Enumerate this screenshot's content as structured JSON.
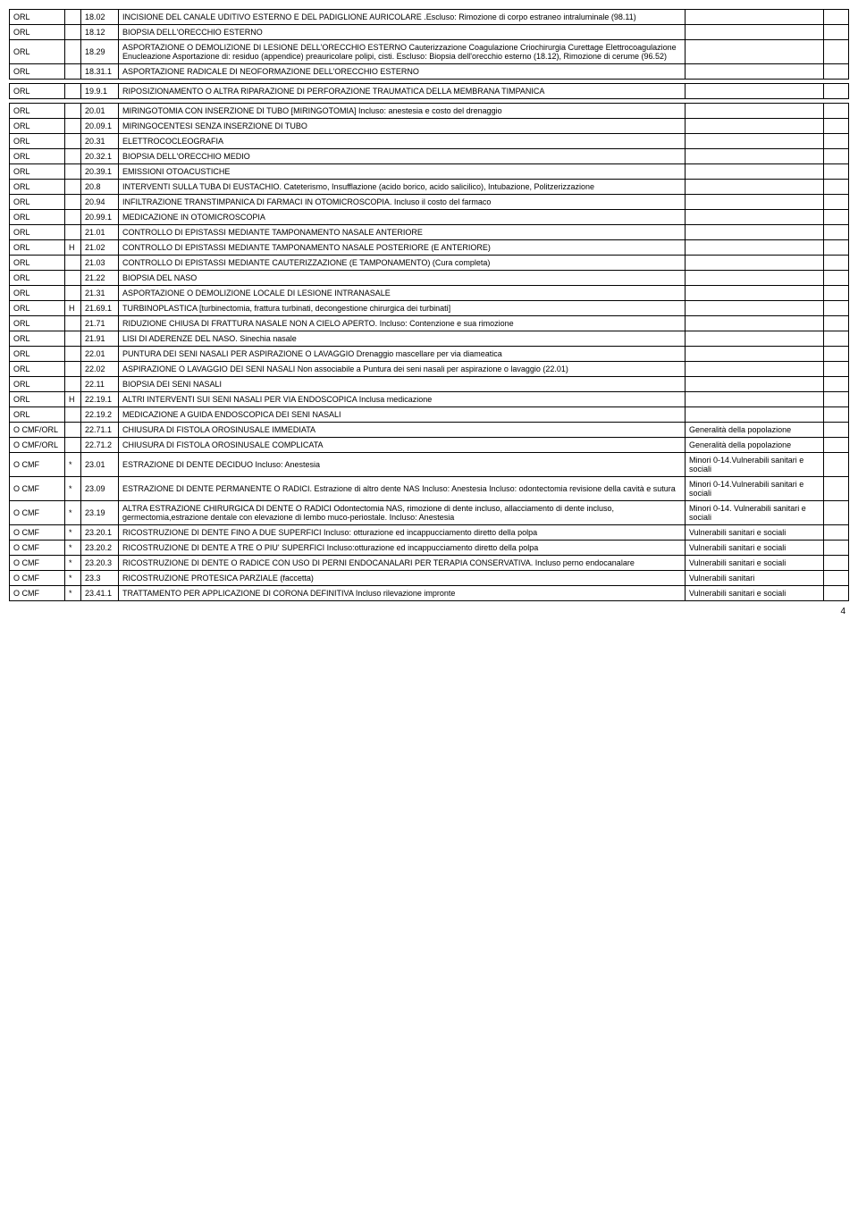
{
  "page_number": "4",
  "rows": [
    {
      "c1": "ORL",
      "c2": "",
      "c3": "18.02",
      "c4": "INCISIONE DEL CANALE UDITIVO ESTERNO E DEL PADIGLIONE AURICOLARE .Escluso: Rimozione di corpo estraneo intraluminale (98.11)",
      "c5": "",
      "c6": ""
    },
    {
      "c1": "ORL",
      "c2": "",
      "c3": "18.12",
      "c4": "BIOPSIA DELL'ORECCHIO ESTERNO",
      "c5": "",
      "c6": ""
    },
    {
      "c1": "ORL",
      "c2": "",
      "c3": "18.29",
      "c4": "ASPORTAZIONE O DEMOLIZIONE DI LESIONE DELL'ORECCHIO ESTERNO Cauterizzazione Coagulazione Criochirurgia Curettage Elettrocoagulazione Enucleazione Asportazione di: residuo (appendice) preauricolare polipi, cisti. Escluso: Biopsia dell'orecchio esterno (18.12), Rimozione di cerume (96.52)",
      "c5": "",
      "c6": ""
    },
    {
      "c1": "ORL",
      "c2": "",
      "c3": "18.31.1",
      "c4": "ASPORTAZIONE RADICALE DI NEOFORMAZIONE  DELL'ORECCHIO ESTERNO",
      "c5": "",
      "c6": ""
    },
    {
      "spacer": true
    },
    {
      "c1": "ORL",
      "c2": "",
      "c3": "19.9.1",
      "c4": "RIPOSIZIONAMENTO O ALTRA RIPARAZIONE DI PERFORAZIONE TRAUMATICA DELLA MEMBRANA TIMPANICA",
      "c5": "",
      "c6": ""
    },
    {
      "spacer": true
    },
    {
      "c1": "ORL",
      "c2": "",
      "c3": "20.01",
      "c4": "MIRINGOTOMIA CON INSERZIONE DI TUBO [MIRINGOTOMIA]  Incluso: anestesia e costo del drenaggio",
      "c5": "",
      "c6": ""
    },
    {
      "c1": "ORL",
      "c2": "",
      "c3": "20.09.1",
      "c4": "MIRINGOCENTESI SENZA INSERZIONE DI TUBO",
      "c5": "",
      "c6": ""
    },
    {
      "c1": "ORL",
      "c2": "",
      "c3": "20.31",
      "c4": "ELETTROCOCLEOGRAFIA",
      "c5": "",
      "c6": ""
    },
    {
      "c1": "ORL",
      "c2": "",
      "c3": "20.32.1",
      "c4": "BIOPSIA DELL'ORECCHIO MEDIO",
      "c5": "",
      "c6": ""
    },
    {
      "c1": "ORL",
      "c2": "",
      "c3": "20.39.1",
      "c4": "EMISSIONI OTOACUSTICHE",
      "c5": "",
      "c6": ""
    },
    {
      "c1": "ORL",
      "c2": "",
      "c3": "20.8",
      "c4": "INTERVENTI SULLA TUBA DI EUSTACHIO. Cateterismo, Insufflazione (acido borico, acido salicilico), Intubazione, Politzerizzazione",
      "c5": "",
      "c6": ""
    },
    {
      "c1": "ORL",
      "c2": "",
      "c3": "20.94",
      "c4": "INFILTRAZIONE TRANSTIMPANICA DI FARMACI IN OTOMICROSCOPIA. Incluso il costo del farmaco",
      "c5": "",
      "c6": ""
    },
    {
      "c1": "ORL",
      "c2": "",
      "c3": "20.99.1",
      "c4": "MEDICAZIONE IN OTOMICROSCOPIA",
      "c5": "",
      "c6": ""
    },
    {
      "c1": "ORL",
      "c2": "",
      "c3": "21.01",
      "c4": "CONTROLLO DI EPISTASSI MEDIANTE TAMPONAMENTO NASALE ANTERIORE",
      "c5": "",
      "c6": ""
    },
    {
      "c1": "ORL",
      "c2": "H",
      "c3": "21.02",
      "c4": "CONTROLLO DI EPISTASSI MEDIANTE TAMPONAMENTO NASALE POSTERIORE (E ANTERIORE)",
      "c5": "",
      "c6": ""
    },
    {
      "c1": "ORL",
      "c2": "",
      "c3": "21.03",
      "c4": "CONTROLLO DI EPISTASSI MEDIANTE CAUTERIZZAZIONE (E TAMPONAMENTO) (Cura completa)",
      "c5": "",
      "c6": ""
    },
    {
      "c1": "ORL",
      "c2": "",
      "c3": "21.22",
      "c4": "BIOPSIA DEL NASO",
      "c5": "",
      "c6": ""
    },
    {
      "c1": "ORL",
      "c2": "",
      "c3": "21.31",
      "c4": "ASPORTAZIONE O DEMOLIZIONE LOCALE DI LESIONE INTRANASALE",
      "c5": "",
      "c6": ""
    },
    {
      "c1": "ORL",
      "c2": "H",
      "c3": "21.69.1",
      "c4": "TURBINOPLASTICA [turbinectomia, frattura turbinati, decongestione chirurgica dei turbinati]",
      "c5": "",
      "c6": ""
    },
    {
      "c1": "ORL",
      "c2": "",
      "c3": "21.71",
      "c4": "RIDUZIONE CHIUSA DI FRATTURA NASALE NON A CIELO APERTO. Incluso: Contenzione e sua rimozione",
      "c5": "",
      "c6": ""
    },
    {
      "c1": "ORL",
      "c2": "",
      "c3": "21.91",
      "c4": "LISI DI ADERENZE DEL NASO. Sinechia nasale",
      "c5": "",
      "c6": ""
    },
    {
      "c1": "ORL",
      "c2": "",
      "c3": "22.01",
      "c4": "PUNTURA DEI SENI NASALI PER ASPIRAZIONE O LAVAGGIO Drenaggio mascellare per via diameatica",
      "c5": "",
      "c6": ""
    },
    {
      "c1": "ORL",
      "c2": "",
      "c3": "22.02",
      "c4": "ASPIRAZIONE O LAVAGGIO DEI SENI NASALI Non associabile a Puntura dei seni nasali per aspirazione o lavaggio (22.01)",
      "c5": "",
      "c6": ""
    },
    {
      "c1": "ORL",
      "c2": "",
      "c3": "22.11",
      "c4": "BIOPSIA DEI SENI NASALI",
      "c5": "",
      "c6": ""
    },
    {
      "c1": "ORL",
      "c2": "H",
      "c3": "22.19.1",
      "c4": "ALTRI INTERVENTI SUI SENI NASALI PER VIA ENDOSCOPICA Inclusa medicazione",
      "c5": "",
      "c6": ""
    },
    {
      "c1": "ORL",
      "c2": "",
      "c3": "22.19.2",
      "c4": "MEDICAZIONE A GUIDA ENDOSCOPICA DEI SENI NASALI",
      "c5": "",
      "c6": ""
    },
    {
      "c1": "O CMF/ORL",
      "c2": "",
      "c3": "22.71.1",
      "c4": "CHIUSURA DI FISTOLA OROSINUSALE IMMEDIATA",
      "c5": "Generalità della popolazione",
      "c6": ""
    },
    {
      "c1": "O CMF/ORL",
      "c2": "",
      "c3": "22.71.2",
      "c4": "CHIUSURA DI FISTOLA OROSINUSALE COMPLICATA",
      "c5": "Generalità della popolazione",
      "c6": ""
    },
    {
      "c1": "O CMF",
      "c2": "*",
      "c3": "23.01",
      "c4": "ESTRAZIONE DI DENTE DECIDUO Incluso: Anestesia",
      "c5": "Minori 0-14.Vulnerabili sanitari e sociali",
      "c6": ""
    },
    {
      "c1": "O CMF",
      "c2": "*",
      "c3": "23.09",
      "c4": "ESTRAZIONE DI DENTE PERMANENTE O RADICI. Estrazione di altro dente NAS\nIncluso: Anestesia                                                                                                                                             Incluso: odontectomia revisione della cavità e sutura",
      "c5": "Minori 0-14.Vulnerabili sanitari e sociali",
      "c6": ""
    },
    {
      "c1": "O CMF",
      "c2": "*",
      "c3": "23.19",
      "c4": "ALTRA ESTRAZIONE CHIRURGICA DI DENTE O RADICI  Odontectomia NAS, rimozione di dente incluso, allacciamento di dente incluso, germectomia,estrazione dentale con elevazione di lembo muco-periostale. Incluso: Anestesia",
      "c5": "Minori 0-14. Vulnerabili sanitari e sociali",
      "c6": ""
    },
    {
      "c1": "O CMF",
      "c2": "*",
      "c3": "23.20.1",
      "c4": "RICOSTRUZIONE DI DENTE FINO A DUE SUPERFICI Incluso: otturazione ed incappucciamento diretto della polpa",
      "c5": "Vulnerabili sanitari e sociali",
      "c6": ""
    },
    {
      "c1": "O CMF",
      "c2": "*",
      "c3": "23.20.2",
      "c4": "RICOSTRUZIONE DI DENTE A TRE O PIU' SUPERFICI Incluso:otturazione ed incappucciamento diretto della polpa",
      "c5": "Vulnerabili sanitari e sociali",
      "c6": ""
    },
    {
      "c1": "O CMF",
      "c2": "*",
      "c3": "23.20.3",
      "c4": "RICOSTRUZIONE DI DENTE O RADICE CON USO DI PERNI ENDOCANALARI PER TERAPIA CONSERVATIVA. Incluso perno endocanalare",
      "c5": "Vulnerabili sanitari e sociali",
      "c6": ""
    },
    {
      "c1": "O CMF",
      "c2": "*",
      "c3": "23.3",
      "c4": "RICOSTRUZIONE PROTESICA PARZIALE (faccetta)",
      "c5": "Vulnerabili sanitari",
      "c6": ""
    },
    {
      "c1": "O CMF",
      "c2": "*",
      "c3": "23.41.1",
      "c4": "TRATTAMENTO PER APPLICAZIONE DI CORONA DEFINITIVA Incluso  rilevazione impronte",
      "c5": "Vulnerabili sanitari e sociali",
      "c6": ""
    }
  ]
}
